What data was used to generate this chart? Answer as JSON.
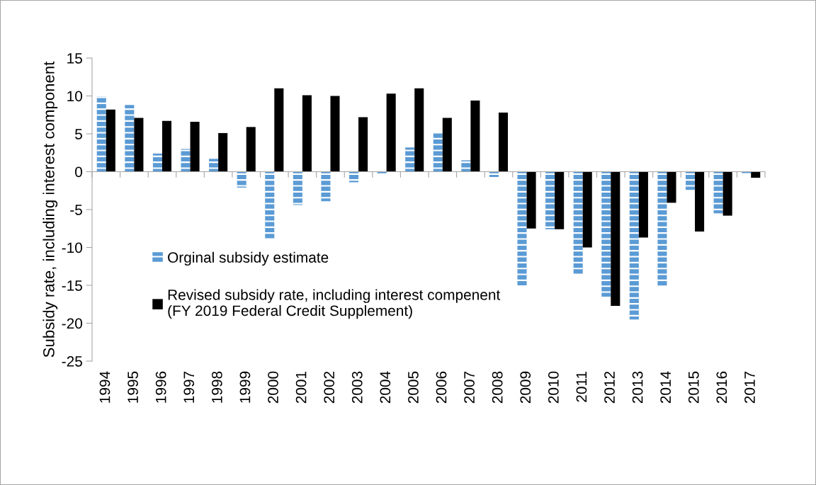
{
  "chart_data": {
    "type": "bar",
    "ylabel": "Subsidy rate, including interest component",
    "categories": [
      "1994",
      "1995",
      "1996",
      "1997",
      "1998",
      "1999",
      "2000",
      "2001",
      "2002",
      "2003",
      "2004",
      "2005",
      "2006",
      "2007",
      "2008",
      "2009",
      "2010",
      "2011",
      "2012",
      "2013",
      "2014",
      "2015",
      "2016",
      "2017"
    ],
    "series": [
      {
        "name": "Orginal subsidy estimate",
        "color": "#5b9bd5",
        "values": [
          9.9,
          8.8,
          2.4,
          3.0,
          1.7,
          -2.1,
          -8.9,
          -4.4,
          -3.9,
          -1.4,
          -0.4,
          3.2,
          5.1,
          1.5,
          -0.7,
          -15.0,
          -7.6,
          -13.6,
          -16.5,
          -19.5,
          -15.1,
          -2.4,
          -5.5,
          -0.2
        ]
      },
      {
        "name": "Revised subsidy rate, including interest compenent\n(FY 2019 Federal Credit Supplement)",
        "color": "#000000",
        "values": [
          8.2,
          7.1,
          6.7,
          6.6,
          5.1,
          5.9,
          11.0,
          10.1,
          10.0,
          7.2,
          10.3,
          11.0,
          7.1,
          9.4,
          7.8,
          -7.5,
          -7.6,
          -10.0,
          -17.7,
          -8.7,
          -4.1,
          -7.9,
          -5.8,
          -0.8
        ]
      }
    ],
    "ylim": [
      -25,
      15
    ],
    "yticks": [
      -25,
      -20,
      -15,
      -10,
      -5,
      0,
      5,
      10,
      15
    ],
    "legend": "left"
  }
}
